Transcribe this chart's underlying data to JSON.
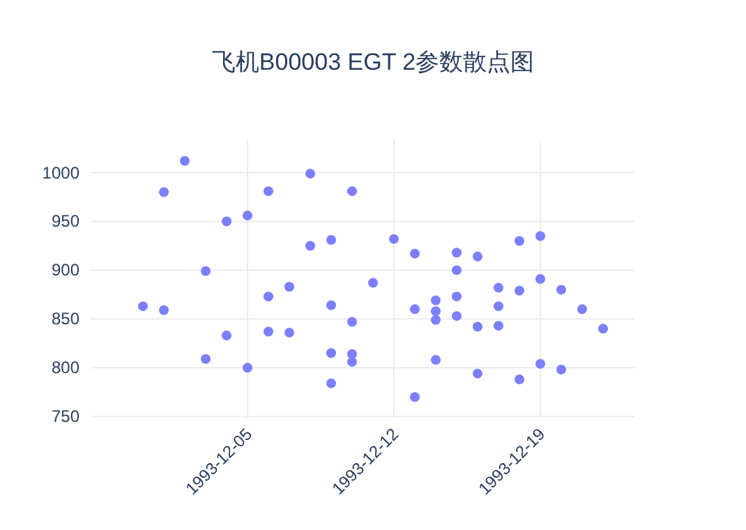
{
  "chart_data": {
    "type": "scatter",
    "title": "飞机B00003 EGT 2参数散点图",
    "x": [
      "1993-11-30",
      "1993-12-01",
      "1993-12-01",
      "1993-12-02",
      "1993-12-03",
      "1993-12-03",
      "1993-12-04",
      "1993-12-04",
      "1993-12-05",
      "1993-12-05",
      "1993-12-06",
      "1993-12-06",
      "1993-12-06",
      "1993-12-07",
      "1993-12-07",
      "1993-12-08",
      "1993-12-08",
      "1993-12-09",
      "1993-12-09",
      "1993-12-09",
      "1993-12-09",
      "1993-12-10",
      "1993-12-10",
      "1993-12-10",
      "1993-12-10",
      "1993-12-11",
      "1993-12-12",
      "1993-12-13",
      "1993-12-13",
      "1993-12-13",
      "1993-12-14",
      "1993-12-14",
      "1993-12-14",
      "1993-12-14",
      "1993-12-15",
      "1993-12-15",
      "1993-12-15",
      "1993-12-15",
      "1993-12-16",
      "1993-12-16",
      "1993-12-16",
      "1993-12-17",
      "1993-12-17",
      "1993-12-17",
      "1993-12-18",
      "1993-12-18",
      "1993-12-18",
      "1993-12-19",
      "1993-12-19",
      "1993-12-19",
      "1993-12-20",
      "1993-12-20",
      "1993-12-21",
      "1993-12-22"
    ],
    "series": [
      {
        "color": "#7b7ffa",
        "values": [
          863,
          980,
          859,
          1012,
          899,
          809,
          950,
          833,
          956,
          800,
          981,
          873,
          837,
          883,
          836,
          999,
          925,
          931,
          864,
          815,
          784,
          981,
          847,
          814,
          806,
          887,
          932,
          917,
          860,
          770,
          869,
          858,
          849,
          808,
          918,
          900,
          873,
          853,
          914,
          842,
          794,
          882,
          863,
          843,
          930,
          879,
          788,
          935,
          891,
          804,
          880,
          798,
          860,
          840
        ]
      }
    ],
    "xlim": [
      "1993-11-27T12:00",
      "1993-12-23T12:00"
    ],
    "ylim": [
      748,
      1034
    ],
    "xticks": [
      "1993-12-05",
      "1993-12-12",
      "1993-12-19"
    ],
    "yticks": [
      750,
      800,
      850,
      900,
      950,
      1000
    ],
    "grid": true,
    "marker": "circle"
  }
}
